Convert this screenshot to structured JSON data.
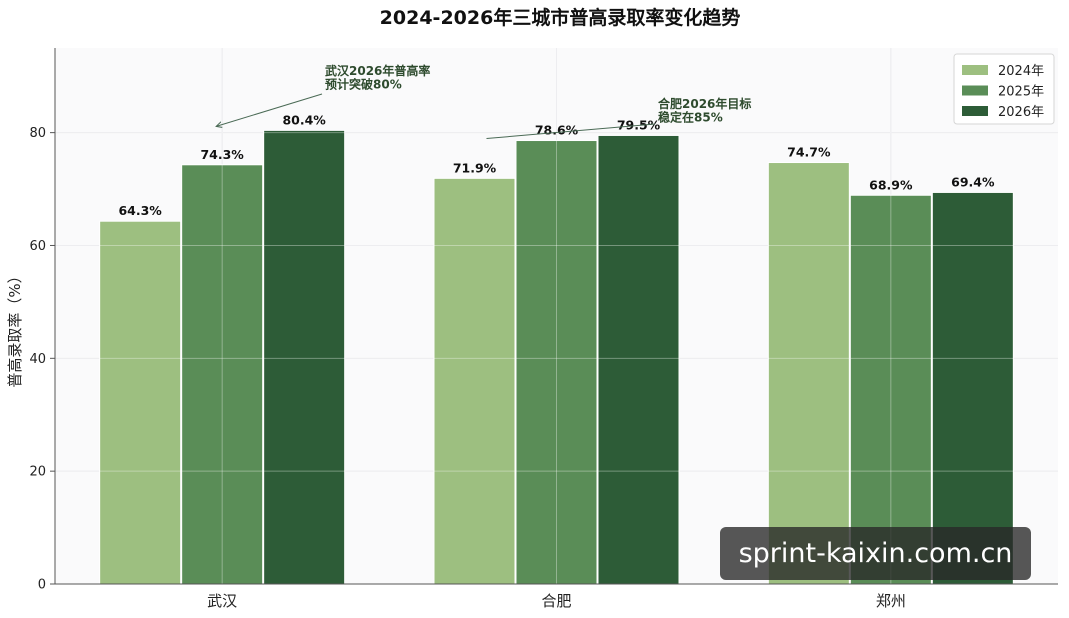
{
  "chart_data": {
    "type": "bar",
    "title": "2024-2026年三城市普高录取率变化趋势",
    "ylabel": "普高录取率（%）",
    "xlabel": "",
    "categories": [
      "武汉",
      "合肥",
      "郑州"
    ],
    "series": [
      {
        "name": "2024年",
        "color": "#9dbf80",
        "values": [
          64.3,
          71.9,
          74.7
        ],
        "labels": [
          "64.3%",
          "71.9%",
          "74.7%"
        ]
      },
      {
        "name": "2025年",
        "color": "#5a8d57",
        "values": [
          74.3,
          78.6,
          68.9
        ],
        "labels": [
          "74.3%",
          "78.6%",
          "68.9%"
        ]
      },
      {
        "name": "2026年",
        "color": "#2d5c37",
        "values": [
          80.4,
          79.5,
          69.4
        ],
        "labels": [
          "80.4%",
          "79.5%",
          "69.4%"
        ]
      }
    ],
    "ylim": [
      0,
      95
    ],
    "yticks": [
      0,
      20,
      40,
      60,
      80
    ],
    "legend_position": "top-right",
    "grid": true,
    "annotations": [
      {
        "lines": [
          "武汉2026年普高率",
          "预计突破80%"
        ],
        "category": "武汉",
        "series": "2026年",
        "target_value": 80.4
      },
      {
        "lines": [
          "合肥2026年目标",
          "稳定在85%"
        ],
        "category": "合肥",
        "series": "2025年",
        "target_value": 78.6
      }
    ]
  },
  "watermark": "sprint-kaixin.com.cn"
}
